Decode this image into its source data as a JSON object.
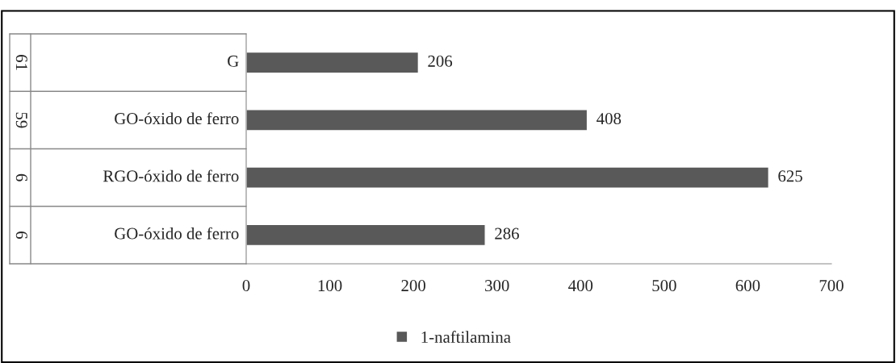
{
  "chart_data": {
    "type": "bar",
    "orientation": "horizontal",
    "categories": [
      "G",
      "GO-óxido de ferro",
      "RGO-óxido de ferro",
      "GO-óxido de ferro"
    ],
    "series": [
      {
        "name": "1-naftilamina",
        "color": "#595959",
        "values": [
          206,
          408,
          625,
          286
        ]
      }
    ],
    "annotations": [
      "61",
      "59",
      "6",
      "6"
    ],
    "xlim": [
      0,
      700
    ],
    "xticks": [
      0,
      100,
      200,
      300,
      400,
      500,
      600,
      700
    ],
    "data_labels": true,
    "grid": false,
    "legend": "bottom"
  }
}
